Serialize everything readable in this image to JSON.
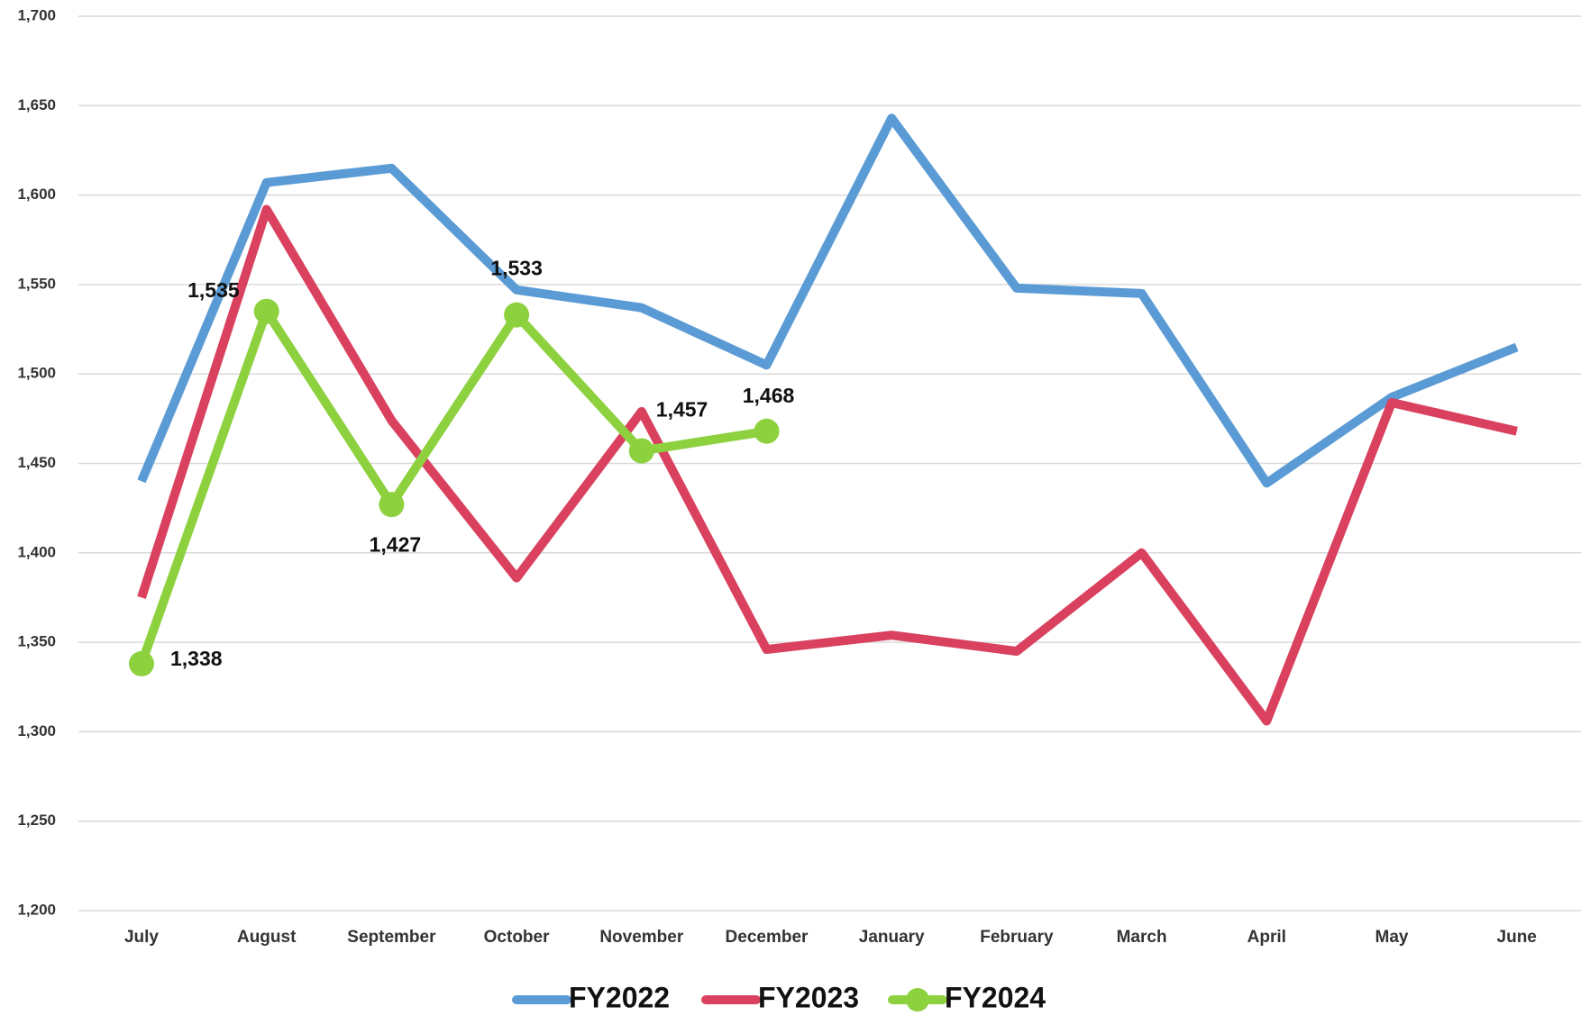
{
  "chart_data": {
    "type": "line",
    "categories": [
      "July",
      "August",
      "September",
      "October",
      "November",
      "December",
      "January",
      "February",
      "March",
      "April",
      "May",
      "June"
    ],
    "series": [
      {
        "name": "FY2022",
        "color": "#5b9bd5",
        "values": [
          1440,
          1607,
          1615,
          1547,
          1537,
          1505,
          1643,
          1548,
          1545,
          1439,
          1487,
          1515
        ]
      },
      {
        "name": "FY2023",
        "color": "#d9415f",
        "values": [
          1375,
          1592,
          1474,
          1386,
          1479,
          1346,
          1354,
          1345,
          1400,
          1306,
          1484,
          1468
        ]
      },
      {
        "name": "FY2024",
        "color": "#8dd13f",
        "markers": true,
        "values": [
          1338,
          1535,
          1427,
          1533,
          1457,
          1468,
          null,
          null,
          null,
          null,
          null,
          null
        ],
        "value_labels": [
          "1,338",
          "1,535",
          "1,427",
          "1,533",
          "1,457",
          "1,468",
          null,
          null,
          null,
          null,
          null,
          null
        ]
      }
    ],
    "ylim": [
      1200,
      1700
    ],
    "yticks": [
      {
        "value": 1200,
        "label": "1,200"
      },
      {
        "value": 1250,
        "label": "1,250"
      },
      {
        "value": 1300,
        "label": "1,300"
      },
      {
        "value": 1350,
        "label": "1,350"
      },
      {
        "value": 1400,
        "label": "1,400"
      },
      {
        "value": 1450,
        "label": "1,450"
      },
      {
        "value": 1500,
        "label": "1,500"
      },
      {
        "value": 1550,
        "label": "1,550"
      },
      {
        "value": 1600,
        "label": "1,600"
      },
      {
        "value": 1650,
        "label": "1,650"
      },
      {
        "value": 1700,
        "label": "1,700"
      }
    ],
    "grid": true,
    "legend": "bottom"
  }
}
